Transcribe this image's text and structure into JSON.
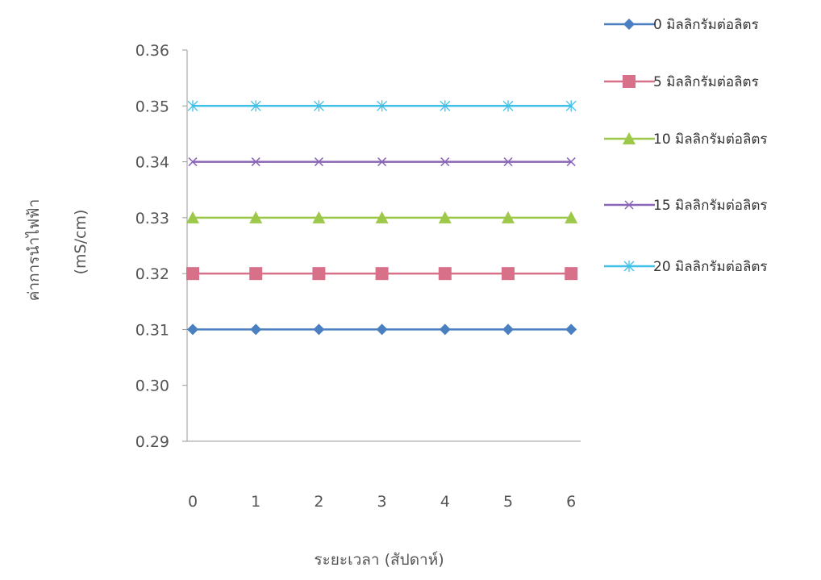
{
  "chart_data": {
    "type": "line",
    "title": "",
    "xlabel": "ระยะเวลา (สัปดาห์)",
    "ylabel": "ค่าการนำไฟฟ้า",
    "ylabel_unit": "(mS/cm)",
    "x": [
      0,
      1,
      2,
      3,
      4,
      5,
      6
    ],
    "x_tick_labels": [
      "0",
      "1",
      "2",
      "3",
      "4",
      "5",
      "6"
    ],
    "ylim": [
      0.29,
      0.36
    ],
    "y_ticks": [
      0.29,
      0.3,
      0.31,
      0.32,
      0.33,
      0.34,
      0.35,
      0.36
    ],
    "y_tick_labels": [
      "0.29",
      "0.30",
      "0.31",
      "0.32",
      "0.33",
      "0.34",
      "0.35",
      "0.36"
    ],
    "grid": false,
    "legend_position": "right",
    "series": [
      {
        "name": "0 มิลลิกรัมต่อลิตร",
        "values": [
          0.31,
          0.31,
          0.31,
          0.31,
          0.31,
          0.31,
          0.31
        ],
        "color": "#4a7fc1",
        "marker": "diamond"
      },
      {
        "name": "5 มิลลิกรัมต่อลิตร",
        "values": [
          0.32,
          0.32,
          0.32,
          0.32,
          0.32,
          0.32,
          0.32
        ],
        "color": "#d9708a",
        "marker": "square"
      },
      {
        "name": "10 มิลลิกรัมต่อลิตร",
        "values": [
          0.33,
          0.33,
          0.33,
          0.33,
          0.33,
          0.33,
          0.33
        ],
        "color": "#9dc84a",
        "marker": "triangle"
      },
      {
        "name": "15 มิลลิกรัมต่อลิตร",
        "values": [
          0.34,
          0.34,
          0.34,
          0.34,
          0.34,
          0.34,
          0.34
        ],
        "color": "#8a64b8",
        "marker": "x"
      },
      {
        "name": "20 มิลลิกรัมต่อลิตร",
        "values": [
          0.35,
          0.35,
          0.35,
          0.35,
          0.35,
          0.35,
          0.35
        ],
        "color": "#3fc0e8",
        "marker": "star"
      }
    ]
  }
}
